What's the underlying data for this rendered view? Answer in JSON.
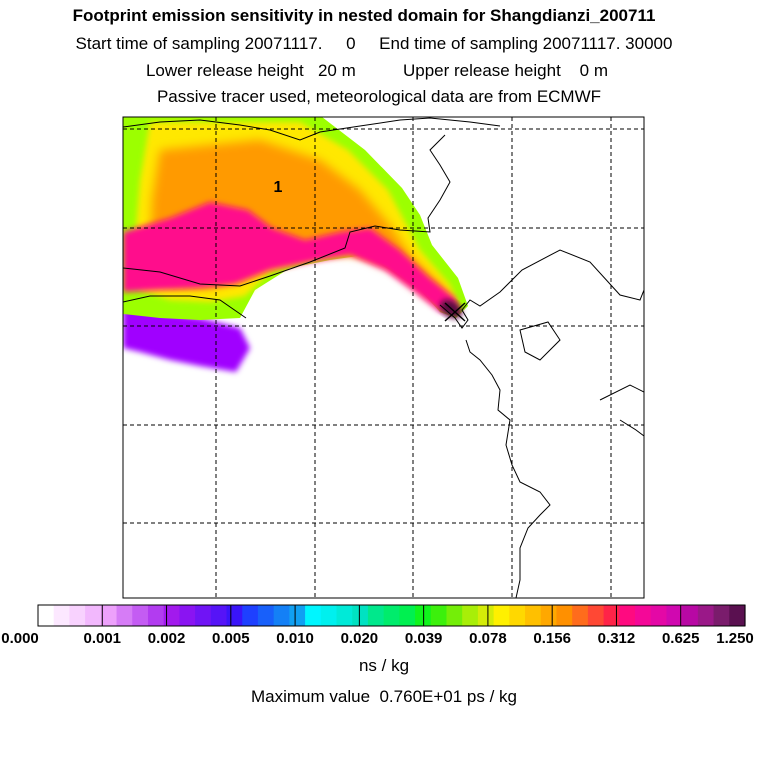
{
  "header": {
    "title": "Footprint emission sensitivity in nested domain for Shangdianzi_200711",
    "sampling_line": "Start time of sampling 20071117.     0     End time of sampling 20071117. 30000",
    "release_line": "Lower release height   20 m          Upper release height    0 m",
    "tracer_line": "Passive tracer used, meteorological data are from ECMWF"
  },
  "map": {
    "label": "1",
    "colors": {
      "plume_core": "#ff0a8c",
      "plume_mid": "#ff9a00",
      "plume_outer": "#ffe800",
      "plume_edge": "#9cff00",
      "fringe": "#a000ff",
      "peak": "#5a1040",
      "grid": "#000000",
      "coast": "#000000"
    }
  },
  "colorbar": {
    "ticks": [
      "0.000",
      "0.001",
      "0.002",
      "0.005",
      "0.010",
      "0.020",
      "0.039",
      "0.078",
      "0.156",
      "0.312",
      "0.625",
      "1.250"
    ],
    "colors": [
      "#ffffff",
      "#fce8ff",
      "#f8d2fe",
      "#f2b8fd",
      "#eda1fb",
      "#d67cf6",
      "#c45cf3",
      "#b23cf0",
      "#a21aed",
      "#8a14f2",
      "#7014f5",
      "#5614f7",
      "#3a14f9",
      "#1e40ff",
      "#1860fa",
      "#1480f6",
      "#10a0f2",
      "#00f6ff",
      "#00f0ee",
      "#00ead8",
      "#00e2c2",
      "#00e88c",
      "#00ec6c",
      "#00f050",
      "#10f41c",
      "#3cf00c",
      "#74ee08",
      "#a8ee08",
      "#d4ec08",
      "#fff000",
      "#ffd800",
      "#ffc000",
      "#ffa800",
      "#ff9000",
      "#ff6c1c",
      "#ff4834",
      "#ff2448",
      "#ff0a80",
      "#f40898",
      "#e408a6",
      "#d008b0",
      "#b808a4",
      "#9a1888",
      "#7a1c6c",
      "#5a1050"
    ],
    "units": "ns / kg",
    "max_value": "Maximum value  0.760E+01 ps / kg"
  }
}
